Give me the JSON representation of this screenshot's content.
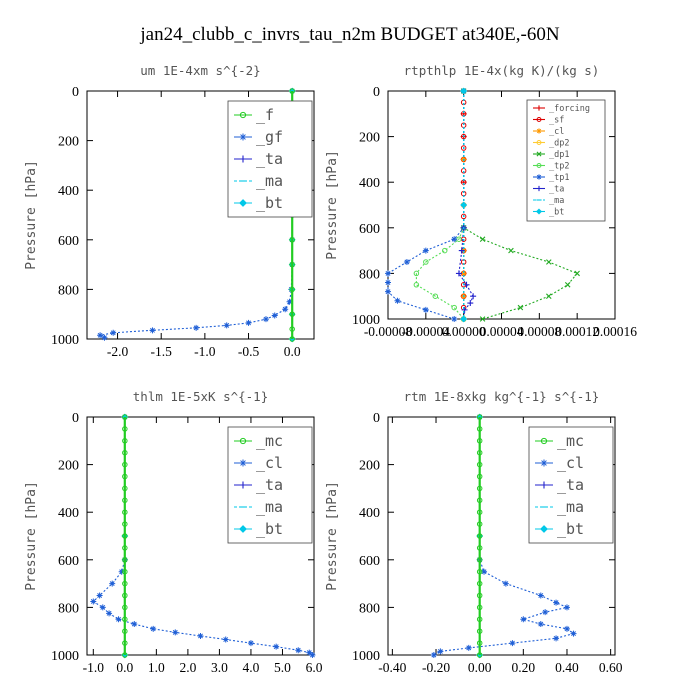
{
  "figure": {
    "title": "jan24_clubb_c_invrs_tau_n2m  BUDGET at340E,-60N"
  },
  "colors": {
    "green": "#22cc22",
    "blue": "#1f5fd6",
    "navy": "#2222cc",
    "cyan": "#00c8e8",
    "red": "#dd0000",
    "orange": "#ff9900",
    "lime": "#00dd33",
    "axis": "#000000"
  },
  "chart_data": [
    {
      "type": "line",
      "title": "um   1E-4xm s^{-2}",
      "ylabel": "Pressure [hPa]",
      "xlabel": "",
      "xlim": [
        -2.35,
        0.25
      ],
      "ylim": [
        1000,
        0
      ],
      "yticks": [
        0,
        200,
        400,
        600,
        800,
        1000
      ],
      "xticks": [
        -2.0,
        -1.5,
        -1.0,
        -0.5,
        0.0
      ],
      "xticklabels": [
        "-2.0",
        "-1.5",
        "-1.0",
        "-0.5",
        "0.0"
      ],
      "legend": {
        "position": "top-right",
        "size": "large"
      },
      "series": [
        {
          "name": "_f",
          "color": "#22cc22",
          "marker": "o",
          "p": [
            0,
            100,
            200,
            300,
            400,
            500,
            600,
            700,
            800,
            900,
            960,
            1000
          ],
          "x": [
            0,
            0,
            0,
            0,
            0,
            0,
            0,
            0,
            0,
            0,
            0,
            0
          ]
        },
        {
          "name": "_gf",
          "color": "#1f5fd6",
          "marker": "*",
          "p": [
            0,
            100,
            200,
            300,
            400,
            500,
            600,
            700,
            800,
            850,
            880,
            905,
            920,
            935,
            945,
            955,
            965,
            975,
            985,
            995
          ],
          "x": [
            0,
            0,
            0,
            0,
            0,
            0,
            0,
            0,
            -0.01,
            -0.03,
            -0.08,
            -0.2,
            -0.3,
            -0.5,
            -0.75,
            -1.1,
            -1.6,
            -2.05,
            -2.2,
            -2.15
          ]
        },
        {
          "name": "_ta",
          "color": "#2222cc",
          "marker": "+",
          "p": [
            0,
            500,
            1000
          ],
          "x": [
            0,
            0,
            0
          ]
        },
        {
          "name": "_ma",
          "color": "#00c8e8",
          "marker": "-",
          "p": [
            0,
            500,
            1000
          ],
          "x": [
            0,
            0,
            0
          ]
        },
        {
          "name": "_bt",
          "color": "#00c8e8",
          "marker": "d",
          "p": [
            0,
            100,
            200,
            300,
            400,
            500,
            600,
            700,
            800,
            900,
            1000
          ],
          "x": [
            0,
            0,
            0,
            0,
            0,
            0,
            0,
            0,
            0,
            0,
            0
          ]
        }
      ]
    },
    {
      "type": "line",
      "title": "rtpthlp   1E-4x(kg K)/(kg s)",
      "ylabel": "Pressure [hPa]",
      "xlabel": "",
      "xlim": [
        -8e-05,
        0.00016
      ],
      "ylim": [
        1000,
        0
      ],
      "yticks": [
        0,
        200,
        400,
        600,
        800,
        1000
      ],
      "xticks": [
        -8e-05,
        -4e-05,
        0,
        4e-05,
        8e-05,
        0.00012,
        0.00016
      ],
      "xticklabels": [
        "-0.00008",
        "-0.00004",
        "0.00000",
        "0.00004",
        "0.00008",
        "0.00012",
        "0.00016"
      ],
      "legend": {
        "position": "top-right",
        "size": "small"
      },
      "series": [
        {
          "name": "_forcing",
          "color": "#dd0000",
          "marker": "+",
          "p": [
            0,
            100,
            200,
            300,
            400,
            500,
            600,
            700,
            800,
            900,
            1000
          ],
          "x": [
            0,
            0,
            0,
            0,
            0,
            0,
            0,
            0,
            0,
            0,
            0
          ]
        },
        {
          "name": "_sf",
          "color": "#dd0000",
          "marker": "o",
          "p": [
            0,
            50,
            100,
            150,
            200,
            250,
            300,
            350,
            400,
            450,
            500,
            550,
            600,
            650,
            700,
            750,
            800,
            850,
            900,
            950,
            1000
          ],
          "x": [
            0,
            0,
            0,
            0,
            0,
            0,
            0,
            0,
            0,
            0,
            0,
            0,
            0,
            0,
            0,
            0,
            0,
            0,
            0,
            0,
            0
          ]
        },
        {
          "name": "_cl",
          "color": "#ff9900",
          "marker": "*",
          "p": [
            0,
            300,
            600,
            700,
            800,
            900,
            1000
          ],
          "x": [
            0,
            0,
            0,
            0,
            0,
            0,
            0
          ]
        },
        {
          "name": "_dp2",
          "color": "#ffcc33",
          "marker": "o",
          "p": [
            0,
            500,
            1000
          ],
          "x": [
            0,
            0,
            0
          ]
        },
        {
          "name": "_dp1",
          "color": "#22aa22",
          "marker": "x",
          "p": [
            0,
            600,
            650,
            700,
            750,
            800,
            850,
            900,
            950,
            1000
          ],
          "x": [
            0,
            0,
            2e-05,
            5e-05,
            9e-05,
            0.00012,
            0.00011,
            9e-05,
            6e-05,
            2e-05
          ]
        },
        {
          "name": "_tp2",
          "color": "#55dd55",
          "marker": "o",
          "p": [
            0,
            600,
            650,
            700,
            750,
            800,
            850,
            900,
            950,
            1000
          ],
          "x": [
            0,
            0,
            -5e-06,
            -2e-05,
            -4e-05,
            -5e-05,
            -5e-05,
            -3e-05,
            -1e-05,
            0
          ]
        },
        {
          "name": "_tp1",
          "color": "#1f5fd6",
          "marker": "*",
          "p": [
            0,
            600,
            650,
            700,
            750,
            800,
            840,
            880,
            920,
            960,
            1000
          ],
          "x": [
            0,
            0,
            -1e-05,
            -4e-05,
            -6e-05,
            -8e-05,
            -8e-05,
            -8e-05,
            -7e-05,
            -4e-05,
            -1e-05
          ]
        },
        {
          "name": "_ta",
          "color": "#2222cc",
          "marker": "+",
          "p": [
            0,
            600,
            700,
            800,
            850,
            900,
            930,
            960,
            1000
          ],
          "x": [
            0,
            0,
            -2e-06,
            -5e-06,
            3e-06,
            1e-05,
            7e-06,
            1e-06,
            0
          ]
        },
        {
          "name": "_ma",
          "color": "#00c8e8",
          "marker": "-",
          "p": [
            0,
            500,
            1000
          ],
          "x": [
            0,
            0,
            0
          ]
        },
        {
          "name": "_bt",
          "color": "#00c8e8",
          "marker": "d",
          "p": [
            0,
            500,
            1000
          ],
          "x": [
            0,
            0,
            0
          ]
        }
      ]
    },
    {
      "type": "line",
      "title": "thlm   1E-5xK s^{-1}",
      "ylabel": "Pressure [hPa]",
      "xlabel": "",
      "xlim": [
        -1.2,
        6.0
      ],
      "ylim": [
        1000,
        0
      ],
      "yticks": [
        0,
        200,
        400,
        600,
        800,
        1000
      ],
      "xticks": [
        -1.0,
        0.0,
        1.0,
        2.0,
        3.0,
        4.0,
        5.0,
        6.0
      ],
      "xticklabels": [
        "-1.0",
        "0.0",
        "1.0",
        "2.0",
        "3.0",
        "4.0",
        "5.0",
        "6.0"
      ],
      "legend": {
        "position": "top-right",
        "size": "large"
      },
      "series": [
        {
          "name": "_mc",
          "color": "#22cc22",
          "marker": "o",
          "p": [
            0,
            50,
            100,
            150,
            200,
            250,
            300,
            350,
            400,
            450,
            500,
            550,
            600,
            650,
            700,
            750,
            800,
            850,
            900,
            950,
            1000
          ],
          "x": [
            0,
            0,
            0,
            0,
            0,
            0,
            0,
            0,
            0,
            0,
            0,
            0,
            0,
            0,
            0,
            0,
            0,
            0,
            0,
            0,
            0
          ]
        },
        {
          "name": "_cl",
          "color": "#1f5fd6",
          "marker": "*",
          "p": [
            0,
            600,
            650,
            700,
            750,
            775,
            800,
            825,
            850,
            870,
            890,
            905,
            920,
            935,
            950,
            965,
            980,
            990,
            1000
          ],
          "x": [
            0,
            0,
            -0.1,
            -0.4,
            -0.8,
            -1.0,
            -0.7,
            -0.5,
            -0.2,
            0.3,
            0.9,
            1.6,
            2.4,
            3.2,
            4.0,
            4.8,
            5.5,
            5.85,
            5.95
          ]
        },
        {
          "name": "_ta",
          "color": "#2222cc",
          "marker": "+",
          "p": [
            0,
            500,
            1000
          ],
          "x": [
            0,
            0,
            0
          ]
        },
        {
          "name": "_ma",
          "color": "#00c8e8",
          "marker": "-",
          "p": [
            0,
            500,
            1000
          ],
          "x": [
            0,
            0,
            0
          ]
        },
        {
          "name": "_bt",
          "color": "#00c8e8",
          "marker": "d",
          "p": [
            0,
            500,
            1000
          ],
          "x": [
            0,
            0,
            0
          ]
        }
      ]
    },
    {
      "type": "line",
      "title": "rtm   1E-8xkg kg^{-1} s^{-1}",
      "ylabel": "Pressure [hPa]",
      "xlabel": "",
      "xlim": [
        -0.42,
        0.62
      ],
      "ylim": [
        1000,
        0
      ],
      "yticks": [
        0,
        200,
        400,
        600,
        800,
        1000
      ],
      "xticks": [
        -0.4,
        -0.2,
        0.0,
        0.2,
        0.4,
        0.6
      ],
      "xticklabels": [
        "-0.40",
        "-0.20",
        "0.00",
        "0.20",
        "0.40",
        "0.60"
      ],
      "legend": {
        "position": "top-right",
        "size": "large"
      },
      "series": [
        {
          "name": "_mc",
          "color": "#22cc22",
          "marker": "o",
          "p": [
            0,
            50,
            100,
            150,
            200,
            250,
            300,
            350,
            400,
            450,
            500,
            550,
            600,
            650,
            700,
            750,
            800,
            850,
            900,
            950,
            1000
          ],
          "x": [
            0,
            0,
            0,
            0,
            0,
            0,
            0,
            0,
            0,
            0,
            0,
            0,
            0,
            0,
            0,
            0,
            0,
            0,
            0,
            0,
            0
          ]
        },
        {
          "name": "_cl",
          "color": "#1f5fd6",
          "marker": "*",
          "p": [
            0,
            600,
            650,
            700,
            750,
            780,
            800,
            820,
            850,
            870,
            890,
            910,
            930,
            950,
            970,
            985,
            1000
          ],
          "x": [
            0,
            0,
            0.02,
            0.12,
            0.28,
            0.35,
            0.4,
            0.3,
            0.2,
            0.28,
            0.4,
            0.43,
            0.35,
            0.15,
            -0.05,
            -0.18,
            -0.21
          ]
        },
        {
          "name": "_ta",
          "color": "#2222cc",
          "marker": "+",
          "p": [
            0,
            500,
            1000
          ],
          "x": [
            0,
            0,
            0
          ]
        },
        {
          "name": "_ma",
          "color": "#00c8e8",
          "marker": "-",
          "p": [
            0,
            500,
            1000
          ],
          "x": [
            0,
            0,
            0
          ]
        },
        {
          "name": "_bt",
          "color": "#00c8e8",
          "marker": "d",
          "p": [
            0,
            500,
            1000
          ],
          "x": [
            0,
            0,
            0
          ]
        }
      ]
    }
  ]
}
